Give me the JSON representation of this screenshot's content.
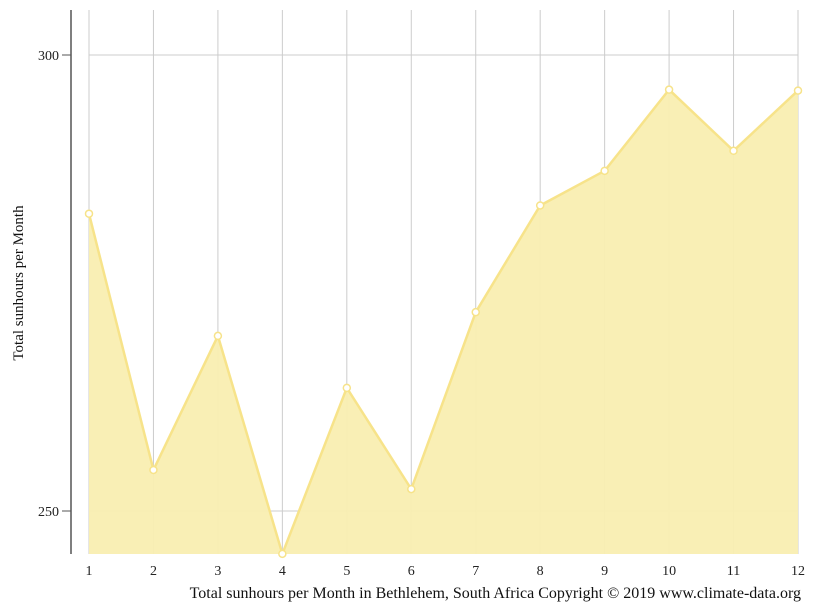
{
  "chart_data": {
    "type": "area",
    "x": [
      1,
      2,
      3,
      4,
      5,
      6,
      7,
      8,
      9,
      10,
      11,
      12
    ],
    "values": [
      282.6,
      254.5,
      269.2,
      245.3,
      263.5,
      252.4,
      271.8,
      283.5,
      287.3,
      296.2,
      289.5,
      296.1
    ],
    "x_tick_labels": [
      "1",
      "2",
      "3",
      "4",
      "5",
      "6",
      "7",
      "8",
      "9",
      "10",
      "11",
      "12"
    ],
    "y_ticks": [
      250,
      300
    ],
    "y_tick_labels": [
      "250",
      "300"
    ],
    "ylabel": "Total sunhours per Month",
    "xlabel": "",
    "caption": "Total sunhours per Month in Bethlehem, South Africa Copyright © 2019 www.climate-data.org",
    "xlim": [
      1,
      12
    ],
    "ylim": [
      245.3,
      305
    ],
    "grid": true,
    "colors": {
      "fill": "#f9eeb1",
      "line": "#f7e38a",
      "marker_fill": "#ffffff",
      "grid": "#cccccc",
      "axis": "#555555"
    }
  }
}
